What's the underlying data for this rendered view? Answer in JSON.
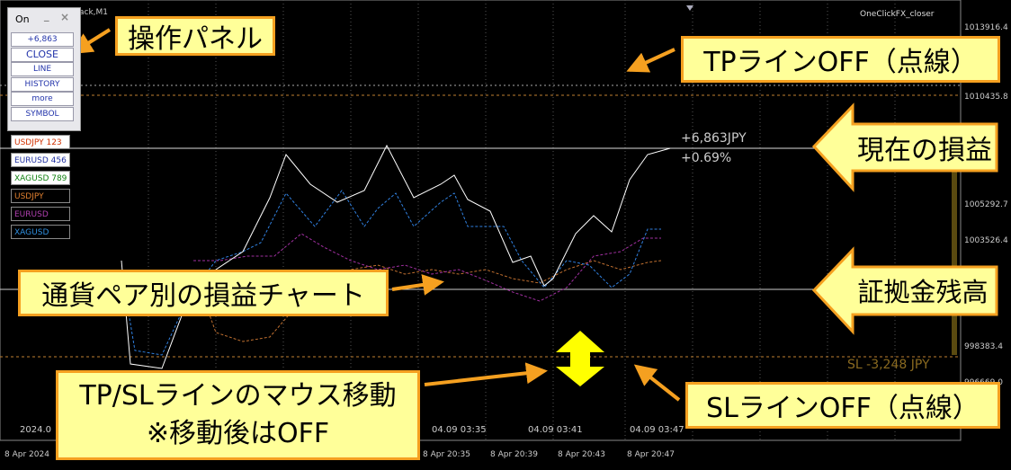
{
  "window": {
    "title_fragment": "ack,M1",
    "ea_name": "OneClickFX_closer"
  },
  "panel": {
    "title": "On",
    "buttons": [
      "+6,863",
      "CLOSE",
      "LINE",
      "HISTORY",
      "more",
      "SYMBOL"
    ]
  },
  "symbols": [
    "USDJPY 123",
    "EURUSD 456",
    "XAGUSD 789",
    "USDJPY",
    "EURUSD",
    "XAGUSD"
  ],
  "price_axis": [
    "1013916.4",
    "1010435.8",
    "1005292.7",
    "1003526.4",
    "998383.4",
    "996669.0"
  ],
  "chart_labels": {
    "profit": "+6,863JPY",
    "percent": "+0.69%",
    "sl": "SL -3,248 JPY"
  },
  "time_axis_inner": [
    "2024.0",
    "04.09 03:35",
    "04.09 03:41",
    "04.09 03:47"
  ],
  "time_axis": [
    "8 Apr 2024",
    "8 Apr 20:35",
    "8 Apr 20:39",
    "8 Apr 20:43",
    "8 Apr 20:47"
  ],
  "annotations": {
    "panel": "操作パネル",
    "tp_off": "TPラインOFF（点線）",
    "current_pl": "現在の損益",
    "pair_chart": "通貨ペア別の損益チャート",
    "balance": "証拠金残高",
    "drag_1": "TP/SLラインのマウス移動",
    "drag_2": "※移動後はOFF",
    "sl_off": "SLラインOFF（点線）"
  }
}
